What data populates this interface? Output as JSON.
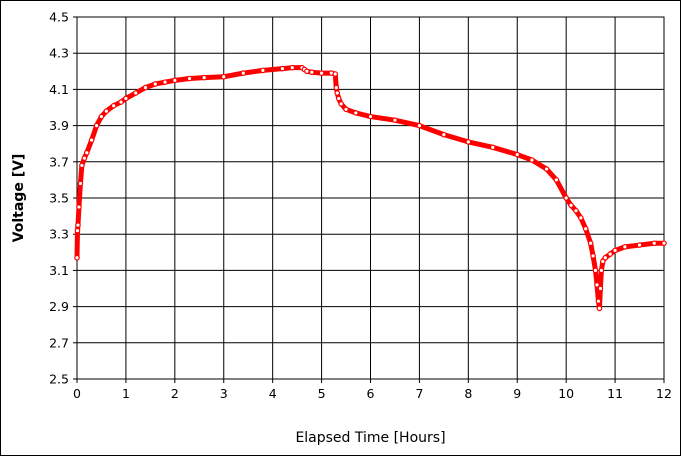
{
  "chart_data": {
    "type": "line",
    "title": "",
    "xlabel": "Elapsed Time [Hours]",
    "ylabel": "Voltage [V]",
    "xlim": [
      0,
      12
    ],
    "ylim": [
      2.5,
      4.5
    ],
    "xticks": [
      "0",
      "1",
      "2",
      "3",
      "4",
      "5",
      "6",
      "7",
      "8",
      "9",
      "10",
      "11",
      "12"
    ],
    "yticks": [
      "2.5",
      "2.7",
      "2.9",
      "3.1",
      "3.3",
      "3.5",
      "3.7",
      "3.9",
      "4.1",
      "4.3",
      "4.5"
    ],
    "grid": true,
    "legend": "none",
    "series": [
      {
        "color": "#ff0000",
        "marker": "open-circle",
        "x": [
          0.0,
          0.01,
          0.02,
          0.04,
          0.07,
          0.1,
          0.15,
          0.2,
          0.3,
          0.4,
          0.5,
          0.6,
          0.75,
          0.9,
          1.0,
          1.2,
          1.4,
          1.6,
          1.8,
          2.0,
          2.3,
          2.6,
          3.0,
          3.4,
          3.8,
          4.2,
          4.4,
          4.6,
          4.65,
          4.7,
          4.8,
          5.0,
          5.2,
          5.28,
          5.3,
          5.32,
          5.35,
          5.4,
          5.5,
          5.7,
          6.0,
          6.5,
          7.0,
          7.5,
          8.0,
          8.5,
          9.0,
          9.3,
          9.6,
          9.8,
          10.0,
          10.1,
          10.2,
          10.3,
          10.4,
          10.5,
          10.55,
          10.6,
          10.63,
          10.66,
          10.68,
          10.7,
          10.72,
          10.75,
          10.8,
          10.9,
          11.0,
          11.2,
          11.5,
          11.8,
          12.0
        ],
        "y": [
          3.17,
          3.32,
          3.35,
          3.45,
          3.58,
          3.68,
          3.72,
          3.75,
          3.82,
          3.9,
          3.95,
          3.98,
          4.01,
          4.03,
          4.05,
          4.08,
          4.11,
          4.13,
          4.14,
          4.15,
          4.16,
          4.165,
          4.17,
          4.19,
          4.205,
          4.215,
          4.22,
          4.22,
          4.21,
          4.2,
          4.195,
          4.19,
          4.19,
          4.185,
          4.11,
          4.08,
          4.05,
          4.02,
          3.99,
          3.97,
          3.95,
          3.93,
          3.9,
          3.85,
          3.81,
          3.78,
          3.74,
          3.71,
          3.66,
          3.6,
          3.5,
          3.46,
          3.43,
          3.39,
          3.33,
          3.25,
          3.18,
          3.1,
          3.02,
          2.93,
          2.89,
          3.0,
          3.1,
          3.15,
          3.17,
          3.19,
          3.21,
          3.23,
          3.24,
          3.25,
          3.25
        ]
      }
    ]
  }
}
